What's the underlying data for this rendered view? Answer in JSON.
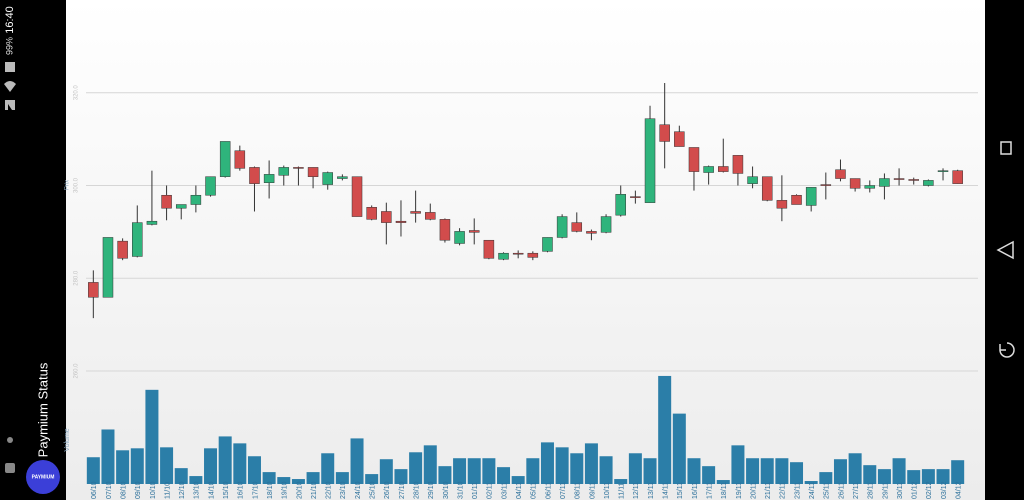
{
  "status_bar": {
    "time": "16:40",
    "battery": "99%"
  },
  "app": {
    "title": "Paymium Status",
    "logo": "PAYMIUM"
  },
  "chart_data": {
    "type": "candlestick",
    "y_label": "Prix",
    "volume_label": "Volume",
    "x": [
      "06/10",
      "07/10",
      "08/10",
      "09/10",
      "10/10",
      "11/10",
      "12/10",
      "13/10",
      "14/10",
      "15/10",
      "16/10",
      "17/10",
      "18/10",
      "19/10",
      "20/10",
      "21/10",
      "22/10",
      "23/10",
      "24/10",
      "25/10",
      "26/10",
      "27/10",
      "28/10",
      "29/10",
      "30/10",
      "31/10",
      "01/11",
      "02/11",
      "03/11",
      "04/11",
      "05/11",
      "06/11",
      "07/11",
      "08/11",
      "09/11",
      "10/11",
      "11/11",
      "12/11",
      "13/11",
      "14/11",
      "15/11",
      "16/11",
      "17/11",
      "18/11",
      "19/11",
      "20/11",
      "21/11",
      "22/11",
      "23/11",
      "24/11",
      "25/11",
      "26/11",
      "27/11",
      "28/11",
      "29/11",
      "30/11",
      "01/12",
      "02/12",
      "03/12",
      "04/12"
    ],
    "open": [
      279.1,
      275.9,
      288.0,
      284.7,
      291.6,
      297.9,
      295.1,
      295.9,
      297.9,
      301.9,
      307.5,
      303.9,
      300.6,
      302.2,
      303.9,
      303.9,
      300.2,
      301.5,
      301.9,
      295.3,
      294.4,
      292.3,
      294.4,
      294.2,
      292.7,
      287.5,
      290.3,
      288.2,
      284.1,
      285.4,
      285.4,
      285.8,
      288.8,
      292.0,
      290.1,
      289.9,
      293.6,
      297.6,
      296.3,
      313.1,
      311.6,
      308.2,
      302.8,
      304.1,
      306.5,
      300.4,
      301.9,
      296.8,
      297.9,
      295.7,
      300.2,
      303.4,
      301.5,
      299.4,
      299.8,
      301.5,
      301.3,
      300.0,
      303.0,
      303.2
    ],
    "high": [
      281.7,
      288.8,
      288.6,
      295.7,
      303.2,
      300.0,
      295.9,
      300.0,
      301.9,
      309.5,
      308.6,
      304.1,
      305.4,
      304.3,
      304.1,
      303.9,
      303.0,
      302.4,
      301.9,
      295.7,
      296.3,
      296.8,
      298.9,
      296.1,
      292.9,
      290.8,
      292.9,
      288.2,
      285.6,
      286.0,
      285.8,
      288.8,
      293.8,
      294.2,
      290.5,
      293.8,
      300.0,
      298.9,
      317.2,
      322.1,
      312.9,
      308.2,
      304.3,
      310.1,
      306.5,
      304.1,
      301.9,
      302.2,
      298.1,
      299.6,
      302.8,
      305.6,
      301.5,
      301.1,
      302.6,
      303.7,
      301.7,
      301.3,
      303.7,
      303.4
    ],
    "low": [
      271.4,
      275.9,
      283.9,
      284.5,
      291.4,
      292.5,
      292.7,
      294.2,
      297.6,
      301.7,
      303.2,
      294.4,
      297.2,
      300.0,
      300.0,
      299.4,
      299.1,
      301.1,
      293.3,
      292.5,
      287.3,
      289.0,
      292.0,
      292.5,
      287.7,
      287.1,
      287.3,
      284.1,
      283.9,
      284.3,
      283.9,
      285.6,
      288.6,
      289.9,
      288.2,
      289.7,
      293.3,
      296.1,
      296.3,
      303.7,
      308.4,
      298.9,
      300.2,
      302.8,
      300.0,
      299.4,
      296.6,
      292.3,
      295.9,
      294.4,
      297.0,
      300.9,
      298.7,
      298.5,
      297.0,
      300.0,
      300.2,
      299.8,
      301.1,
      300.4
    ],
    "close": [
      275.9,
      288.8,
      284.3,
      292.0,
      292.3,
      295.1,
      295.9,
      297.9,
      301.9,
      309.5,
      303.7,
      300.4,
      302.4,
      303.9,
      303.7,
      301.9,
      302.8,
      301.9,
      293.3,
      292.7,
      292.0,
      292.0,
      294.0,
      292.7,
      288.2,
      290.1,
      289.9,
      284.3,
      285.4,
      285.2,
      284.5,
      288.8,
      293.3,
      290.1,
      289.7,
      293.3,
      298.1,
      297.4,
      314.4,
      309.5,
      308.4,
      303.0,
      304.1,
      303.0,
      302.6,
      301.9,
      296.8,
      295.1,
      295.9,
      299.6,
      300.0,
      301.5,
      299.4,
      300.0,
      301.5,
      301.3,
      301.1,
      301.1,
      303.2,
      300.4
    ],
    "volume": [
      27,
      55,
      34,
      36,
      95,
      37,
      16,
      8,
      36,
      48,
      41,
      28,
      12,
      7,
      5,
      12,
      31,
      12,
      46,
      10,
      25,
      15,
      32,
      39,
      18,
      26,
      26,
      26,
      17,
      8,
      26,
      42,
      37,
      31,
      41,
      28,
      5,
      31,
      26,
      109,
      71,
      26,
      18,
      4,
      39,
      26,
      26,
      26,
      22,
      3,
      12,
      25,
      31,
      19,
      15,
      26,
      14,
      15,
      15,
      24
    ],
    "ylim": [
      260,
      340
    ],
    "yticks": [
      {
        "value": 260,
        "label": "260.0"
      },
      {
        "value": 280,
        "label": "280.0"
      },
      {
        "value": 300,
        "label": "300.0"
      },
      {
        "value": 320,
        "label": "320.0"
      }
    ],
    "volume_ylim": [
      0,
      115
    ],
    "grid": true,
    "up_color": "#2fb47c",
    "down_color": "#d24c4c",
    "volume_color": "#2b7ea8"
  }
}
